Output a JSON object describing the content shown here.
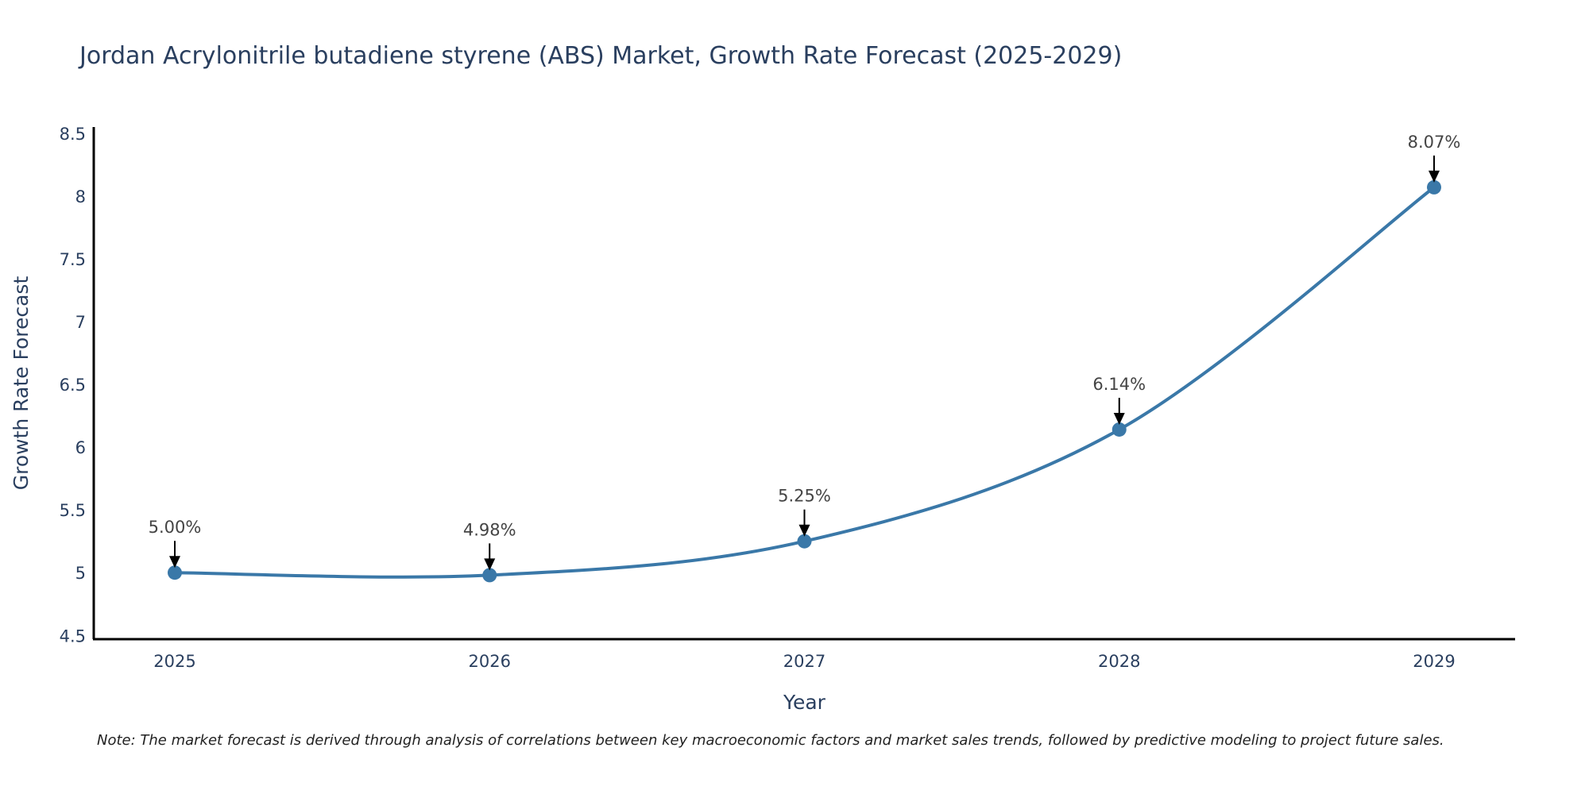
{
  "colors": {
    "series": "#3a78a8",
    "text": "#2a3f5f",
    "axis": "#000000",
    "annotation": "#444444",
    "arrow": "#000000"
  },
  "chart_data": {
    "type": "line",
    "title": "Jordan Acrylonitrile butadiene styrene (ABS) Market, Growth Rate Forecast (2025-2029)",
    "xlabel": "Year",
    "ylabel": "Growth Rate Forecast",
    "categories": [
      "2025",
      "2026",
      "2027",
      "2028",
      "2029"
    ],
    "values": [
      5.0,
      4.98,
      5.25,
      6.14,
      8.07
    ],
    "data_labels": [
      "5.00%",
      "4.98%",
      "5.25%",
      "6.14%",
      "8.07%"
    ],
    "y_ticks": [
      4.5,
      5,
      5.5,
      6,
      6.5,
      7,
      7.5,
      8,
      8.5
    ],
    "y_tick_labels": [
      "4.5",
      "5",
      "5.5",
      "6",
      "6.5",
      "7",
      "7.5",
      "8",
      "8.5"
    ],
    "ylim": [
      4.47,
      8.55
    ],
    "grid": false,
    "smoothing": "spline"
  },
  "note": "Note: The market forecast is derived through analysis of correlations between key macroeconomic factors and market sales trends, followed by predictive modeling to project future sales."
}
